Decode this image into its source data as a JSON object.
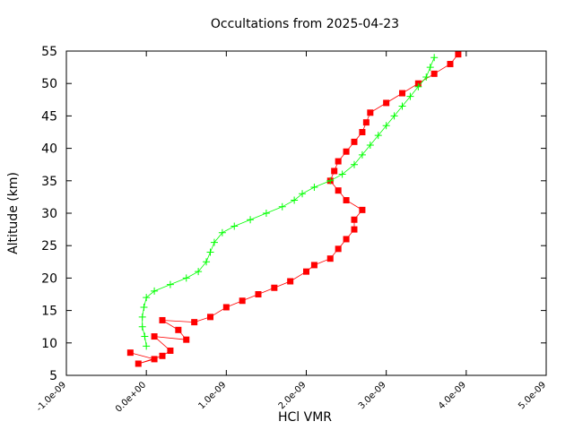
{
  "chart_data": {
    "type": "line",
    "title": "Occultations from 2025-04-23",
    "xlabel": "HCl VMR",
    "ylabel": "Altitude (km)",
    "xlim": [
      -1e-09,
      5e-09
    ],
    "ylim": [
      5,
      55
    ],
    "x_ticks": [
      "-1.0e-09",
      "0.0e+00",
      "1.0e-09",
      "2.0e-09",
      "3.0e-09",
      "4.0e-09",
      "5.0e-09"
    ],
    "x_tick_values": [
      -1e-09,
      0,
      1e-09,
      2e-09,
      3e-09,
      4e-09,
      5e-09
    ],
    "y_ticks": [
      "5",
      "10",
      "15",
      "20",
      "25",
      "30",
      "35",
      "40",
      "45",
      "50",
      "55"
    ],
    "y_tick_values": [
      5,
      10,
      15,
      20,
      25,
      30,
      35,
      40,
      45,
      50,
      55
    ],
    "grid": false,
    "legend": "none",
    "series": [
      {
        "color": "#ff0000",
        "marker": "square",
        "points": [
          [
            -2e-10,
            8.5
          ],
          [
            1e-10,
            7.5
          ],
          [
            -1e-10,
            6.8
          ],
          [
            2e-10,
            8.0
          ],
          [
            3e-10,
            8.8
          ],
          [
            1e-10,
            11.0
          ],
          [
            5e-10,
            10.5
          ],
          [
            4e-10,
            12.0
          ],
          [
            2e-10,
            13.5
          ],
          [
            6e-10,
            13.2
          ],
          [
            8e-10,
            14.0
          ],
          [
            1e-09,
            15.5
          ],
          [
            1.2e-09,
            16.5
          ],
          [
            1.4e-09,
            17.5
          ],
          [
            1.6e-09,
            18.5
          ],
          [
            1.8e-09,
            19.5
          ],
          [
            2e-09,
            21.0
          ],
          [
            2.1e-09,
            22.0
          ],
          [
            2.3e-09,
            23.0
          ],
          [
            2.4e-09,
            24.5
          ],
          [
            2.5e-09,
            26.0
          ],
          [
            2.6e-09,
            27.5
          ],
          [
            2.6e-09,
            29.0
          ],
          [
            2.7e-09,
            30.5
          ],
          [
            2.5e-09,
            32.0
          ],
          [
            2.4e-09,
            33.5
          ],
          [
            2.3e-09,
            35.0
          ],
          [
            2.35e-09,
            36.5
          ],
          [
            2.4e-09,
            38.0
          ],
          [
            2.5e-09,
            39.5
          ],
          [
            2.6e-09,
            41.0
          ],
          [
            2.7e-09,
            42.5
          ],
          [
            2.75e-09,
            44.0
          ],
          [
            2.8e-09,
            45.5
          ],
          [
            3e-09,
            47.0
          ],
          [
            3.2e-09,
            48.5
          ],
          [
            3.4e-09,
            50.0
          ],
          [
            3.6e-09,
            51.5
          ],
          [
            3.8e-09,
            53.0
          ],
          [
            3.9e-09,
            54.5
          ]
        ]
      },
      {
        "color": "#00ff00",
        "marker": "plus",
        "points": [
          [
            0.0,
            9.5
          ],
          [
            -2e-11,
            11.0
          ],
          [
            -5e-11,
            12.5
          ],
          [
            -5e-11,
            14.0
          ],
          [
            -3e-11,
            15.5
          ],
          [
            0.0,
            17.0
          ],
          [
            1e-10,
            18.0
          ],
          [
            3e-10,
            19.0
          ],
          [
            5e-10,
            20.0
          ],
          [
            6.5e-10,
            21.0
          ],
          [
            7.5e-10,
            22.5
          ],
          [
            8e-10,
            24.0
          ],
          [
            8.5e-10,
            25.5
          ],
          [
            9.5e-10,
            27.0
          ],
          [
            1.1e-09,
            28.0
          ],
          [
            1.3e-09,
            29.0
          ],
          [
            1.5e-09,
            30.0
          ],
          [
            1.7e-09,
            31.0
          ],
          [
            1.85e-09,
            32.0
          ],
          [
            1.95e-09,
            33.0
          ],
          [
            2.1e-09,
            34.0
          ],
          [
            2.3e-09,
            35.0
          ],
          [
            2.45e-09,
            36.0
          ],
          [
            2.6e-09,
            37.5
          ],
          [
            2.7e-09,
            39.0
          ],
          [
            2.8e-09,
            40.5
          ],
          [
            2.9e-09,
            42.0
          ],
          [
            3e-09,
            43.5
          ],
          [
            3.1e-09,
            45.0
          ],
          [
            3.2e-09,
            46.5
          ],
          [
            3.3e-09,
            48.0
          ],
          [
            3.4e-09,
            49.5
          ],
          [
            3.5e-09,
            51.0
          ],
          [
            3.55e-09,
            52.5
          ],
          [
            3.6e-09,
            54.0
          ]
        ]
      }
    ]
  }
}
